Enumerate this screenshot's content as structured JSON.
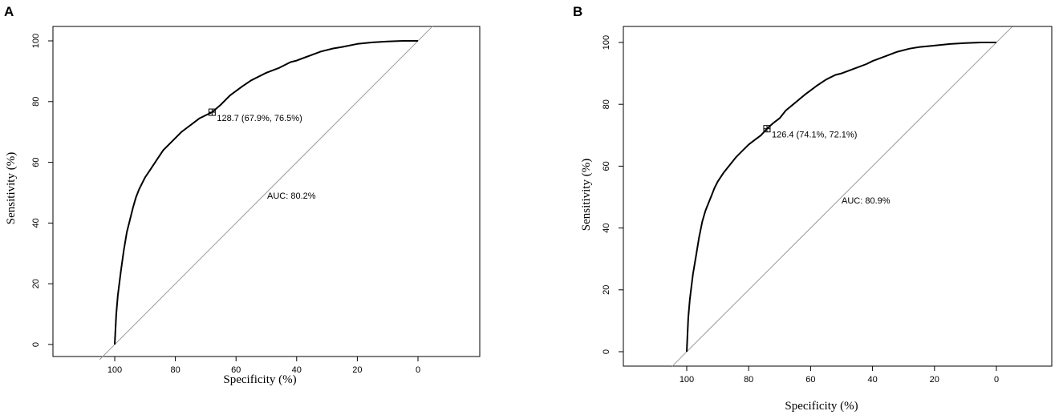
{
  "chart_data": [
    {
      "type": "line",
      "panel": "A",
      "xlabel": "Specificity (%)",
      "ylabel": "Sensitivity (%)",
      "xlim": [
        120,
        -20
      ],
      "ylim": [
        0,
        100
      ],
      "x_ticks": [
        100,
        80,
        60,
        40,
        20,
        0
      ],
      "y_ticks": [
        0,
        20,
        40,
        60,
        80,
        100
      ],
      "grid": false,
      "reference_line": {
        "from": [
          100,
          0
        ],
        "to": [
          0,
          100
        ]
      },
      "series": [
        {
          "x": [
            100,
            99.5,
            99,
            98,
            97,
            96,
            95,
            94,
            93,
            92,
            91,
            90,
            88,
            86,
            84,
            82,
            80,
            78,
            76,
            74,
            72,
            70,
            67.9,
            65,
            62,
            58,
            55,
            52,
            50,
            46,
            42,
            40,
            36,
            32,
            28,
            25,
            20,
            15,
            10,
            5,
            0
          ],
          "y": [
            0,
            10,
            16,
            24,
            31,
            37,
            41,
            45,
            48.5,
            51,
            53,
            55,
            58,
            61,
            64,
            66,
            68,
            70,
            71.5,
            73,
            74.5,
            75.5,
            76.5,
            79,
            82,
            85,
            87,
            88.5,
            89.5,
            91,
            93,
            93.5,
            95,
            96.5,
            97.5,
            98,
            99,
            99.5,
            99.8,
            100,
            100
          ]
        }
      ],
      "annotations": [
        {
          "text": "128.7 (67.9%, 76.5%)",
          "x": 67.9,
          "y": 76.5
        },
        {
          "text": "AUC: 80.2%"
        }
      ]
    },
    {
      "type": "line",
      "panel": "B",
      "xlabel": "Specificity (%)",
      "ylabel": "Sensitivity (%)",
      "xlim": [
        120,
        -20
      ],
      "ylim": [
        0,
        100
      ],
      "x_ticks": [
        100,
        80,
        60,
        40,
        20,
        0
      ],
      "y_ticks": [
        0,
        20,
        40,
        60,
        80,
        100
      ],
      "grid": false,
      "reference_line": {
        "from": [
          100,
          0
        ],
        "to": [
          0,
          100
        ]
      },
      "series": [
        {
          "x": [
            100,
            99.5,
            99,
            98,
            97,
            96,
            95,
            94,
            93,
            92,
            91,
            90,
            88,
            86,
            84,
            82,
            80,
            78,
            76,
            74.1,
            72,
            70,
            68,
            65,
            62,
            58,
            55,
            52,
            50,
            46,
            42,
            40,
            36,
            32,
            28,
            25,
            20,
            15,
            10,
            5,
            0
          ],
          "y": [
            0,
            11,
            17,
            25,
            31,
            37,
            42,
            45.5,
            48,
            50.5,
            53,
            55,
            58,
            60.5,
            63,
            65,
            67,
            68.5,
            70,
            72.1,
            74,
            75.5,
            78,
            80.5,
            83,
            86,
            88,
            89.5,
            90,
            91.5,
            93,
            94,
            95.5,
            97,
            98,
            98.5,
            99,
            99.5,
            99.8,
            100,
            100
          ]
        }
      ],
      "annotations": [
        {
          "text": "126.4 (74.1%, 72.1%)",
          "x": 74.1,
          "y": 72.1
        },
        {
          "text": "AUC: 80.9%"
        }
      ]
    }
  ]
}
